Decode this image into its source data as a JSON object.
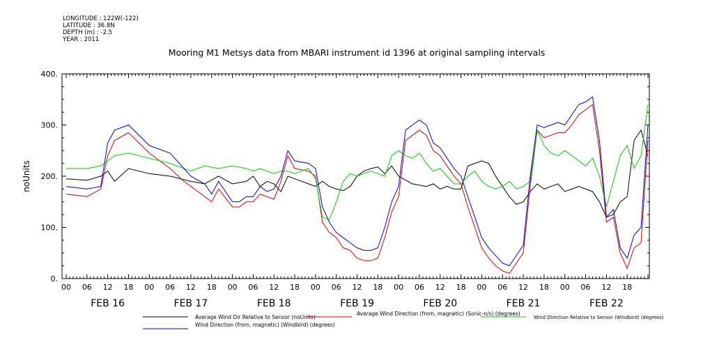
{
  "meta": {
    "longitude": "LONGITUDE : 122W(-122)",
    "latitude": "LATITUDE : 36.8N",
    "depth": "DEPTH (m) : -2.5",
    "year": "YEAR : 2011"
  },
  "chart_data": {
    "type": "line",
    "title": "Mooring M1 Metsys data from MBARI instrument id 1396 at original sampling intervals",
    "ylabel": "noUnits",
    "xlabel": "",
    "ylim": [
      0,
      400
    ],
    "yticks": [
      0,
      100,
      200,
      300,
      400
    ],
    "ytick_labels": [
      "0.",
      "100.",
      "200.",
      "300.",
      "400."
    ],
    "x_hour_ticks": [
      "00",
      "06",
      "12",
      "18",
      "00",
      "06",
      "12",
      "18",
      "00",
      "06",
      "12",
      "18",
      "00",
      "06",
      "12",
      "18",
      "00",
      "06",
      "12",
      "18",
      "00",
      "06",
      "12",
      "18",
      "00",
      "06",
      "12",
      "18"
    ],
    "x_day_labels": [
      "FEB 16",
      "FEB 17",
      "FEB 18",
      "FEB 19",
      "FEB 20",
      "FEB 21",
      "FEB 22"
    ],
    "xlim_hours": [
      0,
      168
    ],
    "x_units": "hours since FEB 16 00:00",
    "grid": false,
    "legend": [
      {
        "label": "Average Wind Dir Relative to Sensor (noUnits)",
        "color": "#000000"
      },
      {
        "label": "Average Wind Direction (from, magnetic) (Sonic-n/s) (degrees)",
        "color": "#e00000"
      },
      {
        "label": "Wind Direction Relative to Sensor (Windbird) (degrees)",
        "color": "#00d000"
      },
      {
        "label": "Wind Direction (from, magnetic) (Windbird) (degrees)",
        "color": "#0000e0"
      }
    ],
    "series": [
      {
        "name": "Average Wind Dir Relative to Sensor (noUnits)",
        "color": "#000000",
        "points": [
          [
            0,
            195
          ],
          [
            6,
            192
          ],
          [
            10,
            200
          ],
          [
            12,
            210
          ],
          [
            14,
            190
          ],
          [
            18,
            215
          ],
          [
            24,
            205
          ],
          [
            30,
            200
          ],
          [
            36,
            190
          ],
          [
            40,
            185
          ],
          [
            44,
            200
          ],
          [
            48,
            185
          ],
          [
            52,
            190
          ],
          [
            54,
            200
          ],
          [
            56,
            180
          ],
          [
            58,
            190
          ],
          [
            60,
            185
          ],
          [
            62,
            170
          ],
          [
            64,
            200
          ],
          [
            66,
            195
          ],
          [
            70,
            185
          ],
          [
            72,
            180
          ],
          [
            74,
            190
          ],
          [
            76,
            180
          ],
          [
            78,
            175
          ],
          [
            80,
            172
          ],
          [
            82,
            180
          ],
          [
            84,
            200
          ],
          [
            86,
            210
          ],
          [
            88,
            215
          ],
          [
            90,
            218
          ],
          [
            92,
            205
          ],
          [
            94,
            220
          ],
          [
            96,
            200
          ],
          [
            100,
            185
          ],
          [
            104,
            180
          ],
          [
            106,
            185
          ],
          [
            108,
            175
          ],
          [
            110,
            180
          ],
          [
            112,
            175
          ],
          [
            114,
            175
          ],
          [
            116,
            220
          ],
          [
            118,
            225
          ],
          [
            120,
            230
          ],
          [
            122,
            225
          ],
          [
            124,
            200
          ],
          [
            126,
            180
          ],
          [
            128,
            160
          ],
          [
            130,
            145
          ],
          [
            132,
            150
          ],
          [
            134,
            170
          ],
          [
            136,
            185
          ],
          [
            138,
            175
          ],
          [
            140,
            180
          ],
          [
            142,
            185
          ],
          [
            144,
            170
          ],
          [
            146,
            175
          ],
          [
            148,
            180
          ],
          [
            150,
            175
          ],
          [
            152,
            170
          ],
          [
            154,
            150
          ],
          [
            156,
            120
          ],
          [
            158,
            125
          ],
          [
            160,
            150
          ],
          [
            162,
            160
          ],
          [
            164,
            270
          ],
          [
            166,
            290
          ],
          [
            168,
            240
          ]
        ]
      },
      {
        "name": "Average Wind Direction (from, magnetic) (Sonic-n/s) (degrees)",
        "color": "#e00000",
        "points": [
          [
            0,
            165
          ],
          [
            6,
            160
          ],
          [
            10,
            175
          ],
          [
            12,
            240
          ],
          [
            14,
            270
          ],
          [
            18,
            285
          ],
          [
            24,
            245
          ],
          [
            30,
            215
          ],
          [
            34,
            190
          ],
          [
            36,
            180
          ],
          [
            40,
            160
          ],
          [
            42,
            150
          ],
          [
            44,
            175
          ],
          [
            48,
            140
          ],
          [
            50,
            140
          ],
          [
            52,
            150
          ],
          [
            54,
            150
          ],
          [
            56,
            165
          ],
          [
            58,
            160
          ],
          [
            60,
            155
          ],
          [
            62,
            190
          ],
          [
            64,
            240
          ],
          [
            66,
            215
          ],
          [
            70,
            210
          ],
          [
            72,
            200
          ],
          [
            74,
            110
          ],
          [
            76,
            90
          ],
          [
            78,
            80
          ],
          [
            80,
            60
          ],
          [
            82,
            55
          ],
          [
            84,
            40
          ],
          [
            86,
            35
          ],
          [
            88,
            35
          ],
          [
            90,
            40
          ],
          [
            92,
            80
          ],
          [
            94,
            130
          ],
          [
            96,
            160
          ],
          [
            98,
            270
          ],
          [
            100,
            280
          ],
          [
            102,
            290
          ],
          [
            104,
            280
          ],
          [
            106,
            250
          ],
          [
            108,
            240
          ],
          [
            110,
            220
          ],
          [
            112,
            200
          ],
          [
            114,
            185
          ],
          [
            116,
            140
          ],
          [
            118,
            100
          ],
          [
            120,
            60
          ],
          [
            122,
            40
          ],
          [
            124,
            25
          ],
          [
            126,
            15
          ],
          [
            128,
            10
          ],
          [
            130,
            30
          ],
          [
            132,
            50
          ],
          [
            134,
            180
          ],
          [
            136,
            290
          ],
          [
            138,
            275
          ],
          [
            140,
            280
          ],
          [
            142,
            285
          ],
          [
            144,
            285
          ],
          [
            146,
            300
          ],
          [
            148,
            320
          ],
          [
            150,
            330
          ],
          [
            152,
            340
          ],
          [
            154,
            250
          ],
          [
            156,
            110
          ],
          [
            158,
            120
          ],
          [
            160,
            50
          ],
          [
            162,
            20
          ],
          [
            164,
            60
          ],
          [
            166,
            70
          ],
          [
            168,
            270
          ]
        ]
      },
      {
        "name": "Wind Direction Relative to Sensor (Windbird) (degrees)",
        "color": "#00d000",
        "points": [
          [
            0,
            215
          ],
          [
            6,
            215
          ],
          [
            10,
            220
          ],
          [
            12,
            230
          ],
          [
            14,
            240
          ],
          [
            18,
            245
          ],
          [
            24,
            235
          ],
          [
            30,
            225
          ],
          [
            36,
            210
          ],
          [
            40,
            220
          ],
          [
            44,
            215
          ],
          [
            48,
            220
          ],
          [
            52,
            215
          ],
          [
            54,
            210
          ],
          [
            56,
            215
          ],
          [
            58,
            210
          ],
          [
            60,
            205
          ],
          [
            62,
            210
          ],
          [
            64,
            210
          ],
          [
            66,
            205
          ],
          [
            68,
            210
          ],
          [
            70,
            215
          ],
          [
            72,
            195
          ],
          [
            74,
            120
          ],
          [
            76,
            115
          ],
          [
            78,
            150
          ],
          [
            80,
            190
          ],
          [
            82,
            205
          ],
          [
            84,
            200
          ],
          [
            86,
            205
          ],
          [
            88,
            210
          ],
          [
            90,
            205
          ],
          [
            92,
            200
          ],
          [
            94,
            240
          ],
          [
            96,
            250
          ],
          [
            98,
            240
          ],
          [
            100,
            235
          ],
          [
            102,
            245
          ],
          [
            104,
            225
          ],
          [
            106,
            210
          ],
          [
            108,
            215
          ],
          [
            110,
            200
          ],
          [
            112,
            185
          ],
          [
            114,
            185
          ],
          [
            116,
            200
          ],
          [
            118,
            210
          ],
          [
            120,
            190
          ],
          [
            122,
            180
          ],
          [
            124,
            175
          ],
          [
            126,
            180
          ],
          [
            128,
            190
          ],
          [
            130,
            175
          ],
          [
            132,
            180
          ],
          [
            134,
            190
          ],
          [
            136,
            290
          ],
          [
            138,
            260
          ],
          [
            140,
            245
          ],
          [
            142,
            240
          ],
          [
            144,
            250
          ],
          [
            146,
            240
          ],
          [
            148,
            230
          ],
          [
            150,
            220
          ],
          [
            152,
            235
          ],
          [
            154,
            200
          ],
          [
            156,
            140
          ],
          [
            158,
            190
          ],
          [
            160,
            240
          ],
          [
            162,
            260
          ],
          [
            164,
            215
          ],
          [
            166,
            240
          ],
          [
            168,
            340
          ]
        ]
      },
      {
        "name": "Wind Direction (from, magnetic) (Windbird) (degrees)",
        "color": "#0000e0",
        "points": [
          [
            0,
            180
          ],
          [
            6,
            175
          ],
          [
            10,
            180
          ],
          [
            12,
            265
          ],
          [
            14,
            290
          ],
          [
            18,
            300
          ],
          [
            24,
            260
          ],
          [
            30,
            245
          ],
          [
            34,
            215
          ],
          [
            36,
            200
          ],
          [
            40,
            185
          ],
          [
            42,
            165
          ],
          [
            44,
            190
          ],
          [
            48,
            150
          ],
          [
            50,
            150
          ],
          [
            52,
            160
          ],
          [
            54,
            160
          ],
          [
            56,
            180
          ],
          [
            58,
            170
          ],
          [
            60,
            175
          ],
          [
            62,
            200
          ],
          [
            64,
            250
          ],
          [
            66,
            230
          ],
          [
            70,
            225
          ],
          [
            72,
            215
          ],
          [
            74,
            140
          ],
          [
            76,
            110
          ],
          [
            78,
            90
          ],
          [
            80,
            80
          ],
          [
            82,
            70
          ],
          [
            84,
            60
          ],
          [
            86,
            55
          ],
          [
            88,
            55
          ],
          [
            90,
            60
          ],
          [
            92,
            100
          ],
          [
            94,
            150
          ],
          [
            96,
            180
          ],
          [
            98,
            290
          ],
          [
            100,
            300
          ],
          [
            102,
            310
          ],
          [
            104,
            300
          ],
          [
            106,
            265
          ],
          [
            108,
            255
          ],
          [
            110,
            235
          ],
          [
            112,
            215
          ],
          [
            114,
            200
          ],
          [
            116,
            160
          ],
          [
            118,
            120
          ],
          [
            120,
            80
          ],
          [
            122,
            60
          ],
          [
            124,
            45
          ],
          [
            126,
            30
          ],
          [
            128,
            25
          ],
          [
            130,
            45
          ],
          [
            132,
            65
          ],
          [
            134,
            200
          ],
          [
            136,
            300
          ],
          [
            138,
            295
          ],
          [
            140,
            300
          ],
          [
            142,
            305
          ],
          [
            144,
            300
          ],
          [
            146,
            320
          ],
          [
            148,
            340
          ],
          [
            150,
            345
          ],
          [
            152,
            355
          ],
          [
            154,
            270
          ],
          [
            156,
            120
          ],
          [
            158,
            135
          ],
          [
            160,
            60
          ],
          [
            162,
            40
          ],
          [
            164,
            85
          ],
          [
            166,
            100
          ],
          [
            168,
            300
          ]
        ]
      }
    ]
  }
}
